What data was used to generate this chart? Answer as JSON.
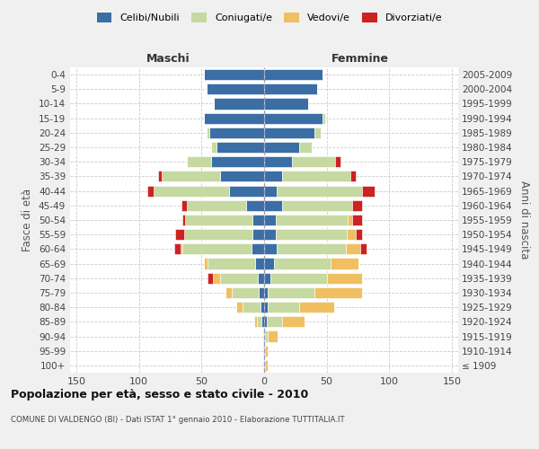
{
  "age_groups": [
    "100+",
    "95-99",
    "90-94",
    "85-89",
    "80-84",
    "75-79",
    "70-74",
    "65-69",
    "60-64",
    "55-59",
    "50-54",
    "45-49",
    "40-44",
    "35-39",
    "30-34",
    "25-29",
    "20-24",
    "15-19",
    "10-14",
    "5-9",
    "0-4"
  ],
  "birth_years": [
    "≤ 1909",
    "1910-1914",
    "1915-1919",
    "1920-1924",
    "1925-1929",
    "1930-1934",
    "1935-1939",
    "1940-1944",
    "1945-1949",
    "1950-1954",
    "1955-1959",
    "1960-1964",
    "1965-1969",
    "1970-1974",
    "1975-1979",
    "1980-1984",
    "1985-1989",
    "1990-1994",
    "1995-1999",
    "2000-2004",
    "2005-2009"
  ],
  "colors": {
    "celibi": "#3a6ea5",
    "coniugati": "#c5d9a0",
    "vedovi": "#f0c060",
    "divorziati": "#cc2222"
  },
  "maschi": {
    "celibi": [
      1,
      1,
      1,
      2,
      3,
      4,
      5,
      7,
      10,
      9,
      9,
      14,
      28,
      35,
      42,
      38,
      44,
      48,
      40,
      46,
      48
    ],
    "coniugati": [
      0,
      0,
      0,
      4,
      14,
      22,
      30,
      38,
      55,
      55,
      54,
      48,
      60,
      47,
      20,
      4,
      2,
      0,
      0,
      0,
      0
    ],
    "vedovi": [
      0,
      0,
      0,
      2,
      5,
      5,
      6,
      3,
      2,
      0,
      0,
      0,
      0,
      0,
      0,
      0,
      0,
      0,
      0,
      0,
      0
    ],
    "divorziati": [
      0,
      0,
      0,
      0,
      0,
      0,
      4,
      0,
      5,
      7,
      2,
      4,
      5,
      3,
      0,
      0,
      0,
      0,
      0,
      0,
      0
    ]
  },
  "femmine": {
    "celibi": [
      1,
      1,
      1,
      2,
      3,
      3,
      5,
      8,
      10,
      9,
      9,
      14,
      10,
      14,
      22,
      28,
      40,
      47,
      35,
      42,
      47
    ],
    "coniugati": [
      0,
      0,
      2,
      12,
      25,
      37,
      45,
      45,
      55,
      57,
      58,
      56,
      68,
      55,
      35,
      10,
      5,
      2,
      0,
      0,
      0
    ],
    "vedovi": [
      2,
      2,
      8,
      18,
      28,
      38,
      28,
      22,
      12,
      7,
      3,
      0,
      0,
      0,
      0,
      0,
      0,
      0,
      0,
      0,
      0
    ],
    "divorziati": [
      0,
      0,
      0,
      0,
      0,
      0,
      0,
      0,
      5,
      5,
      8,
      8,
      10,
      4,
      4,
      0,
      0,
      0,
      0,
      0,
      0
    ]
  },
  "title": "Popolazione per età, sesso e stato civile - 2010",
  "subtitle": "COMUNE DI VALDENGO (BI) - Dati ISTAT 1° gennaio 2010 - Elaborazione TUTTITALIA.IT",
  "ylabel_left": "Fasce di età",
  "ylabel_right": "Anni di nascita",
  "label_maschi": "Maschi",
  "label_femmine": "Femmine",
  "xlim": 155,
  "legend_labels": [
    "Celibi/Nubili",
    "Coniugati/e",
    "Vedovi/e",
    "Divorziati/e"
  ],
  "bg_color": "#f0f0f0",
  "plot_bg_color": "#ffffff",
  "bar_height": 0.75
}
